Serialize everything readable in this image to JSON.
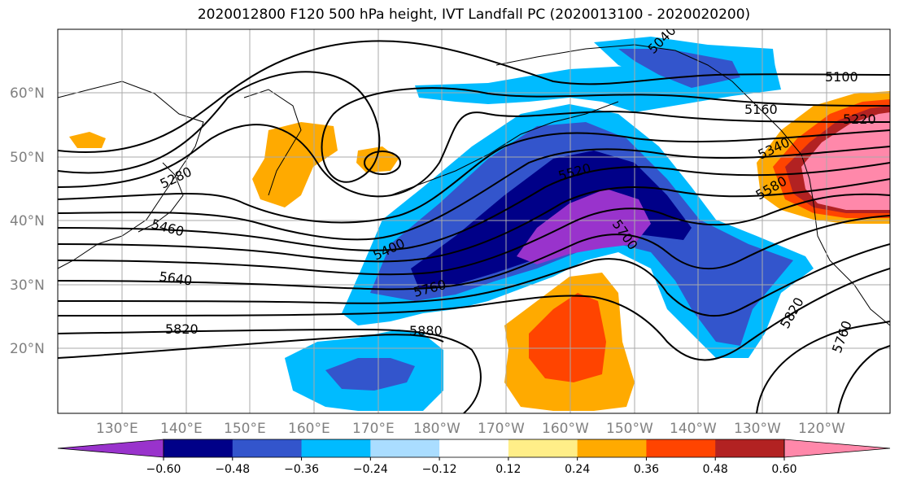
{
  "title": "2020012800 F120 500 hPa height, IVT Landfall PC (2020013100 - 2020020200)",
  "map": {
    "lat_labels": [
      "60°N",
      "50°N",
      "40°N",
      "30°N",
      "20°N"
    ],
    "lon_labels": [
      "130°E",
      "140°E",
      "150°E",
      "160°E",
      "170°E",
      "180°W",
      "170°W",
      "160°W",
      "150°W",
      "140°W",
      "130°W",
      "120°W"
    ],
    "height_contour_labels": [
      "5040",
      "5100",
      "5160",
      "5220",
      "5340",
      "5580",
      "5280",
      "5460",
      "5640",
      "5820",
      "5400",
      "5520",
      "5700",
      "5760",
      "5880",
      "5820",
      "5760"
    ]
  },
  "colorbar": {
    "tick_labels": [
      "−0.60",
      "−0.48",
      "−0.36",
      "−0.24",
      "−0.12",
      "0.12",
      "0.24",
      "0.36",
      "0.48",
      "0.60"
    ],
    "colors": [
      "#9933cc",
      "#000088",
      "#3355cc",
      "#00bbff",
      "#aaddff",
      "#ffffff",
      "#ffee88",
      "#ffaa00",
      "#ff4400",
      "#b22222",
      "#ff88aa"
    ]
  }
}
